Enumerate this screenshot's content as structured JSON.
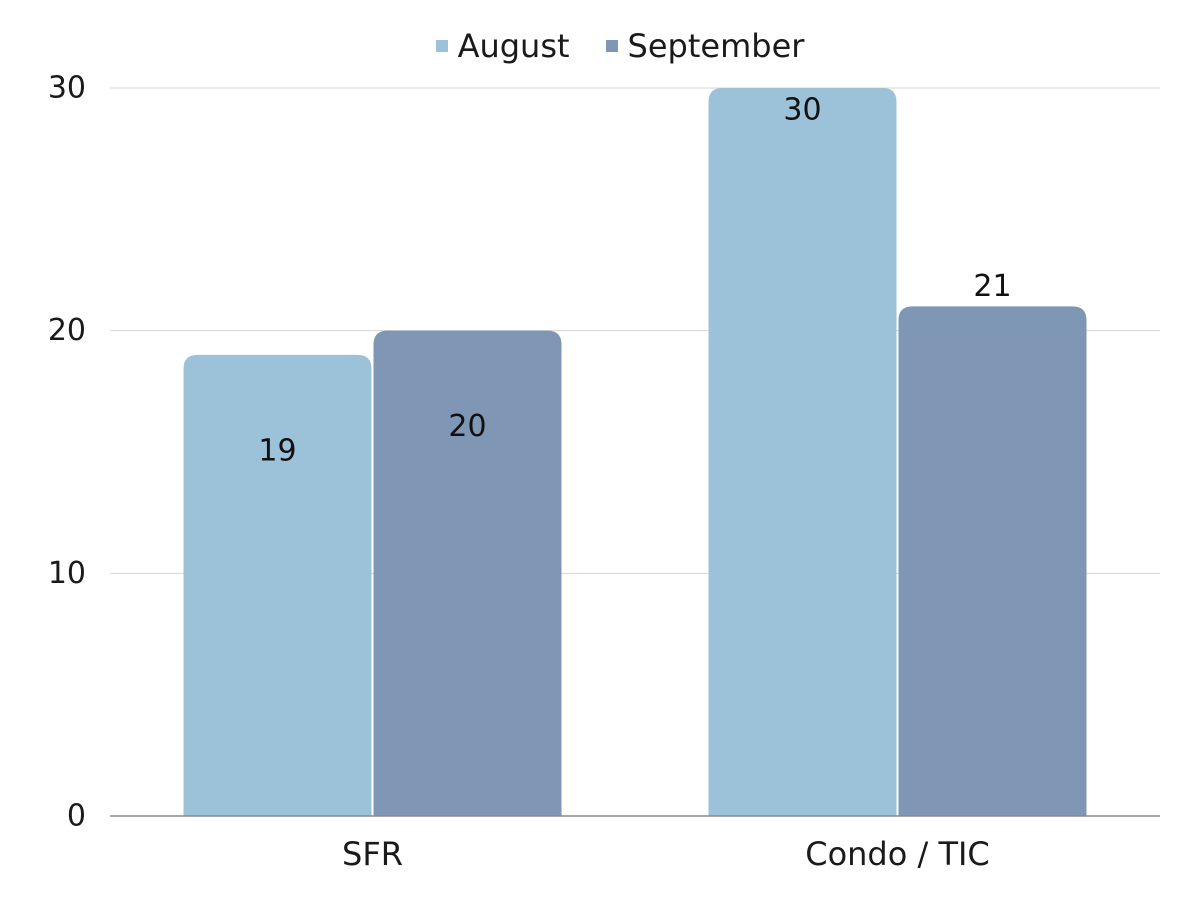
{
  "chart_data": {
    "type": "bar",
    "categories": [
      "SFR",
      "Condo / TIC"
    ],
    "series": [
      {
        "name": "August",
        "values": [
          19,
          30
        ],
        "color": "#9bc2d8"
      },
      {
        "name": "September",
        "values": [
          20,
          21
        ],
        "color": "#7f97b4"
      }
    ],
    "ylim": [
      0,
      30
    ],
    "yticks": [
      "0",
      "10",
      "20",
      "30"
    ],
    "grid": true,
    "legend_position": "top-center",
    "data_labels": true
  }
}
